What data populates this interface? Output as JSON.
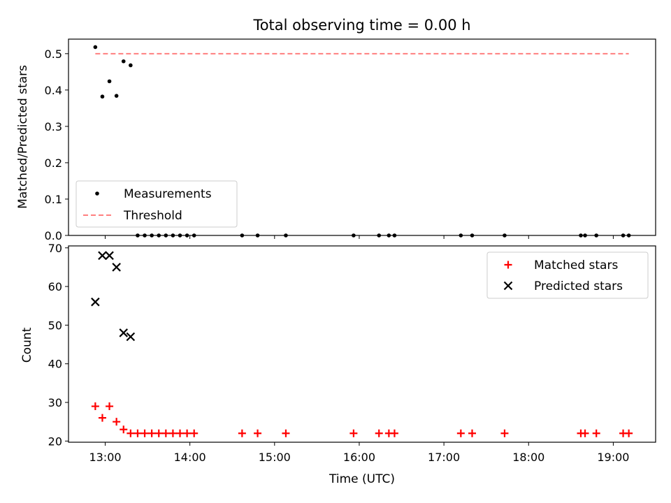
{
  "chart_data": [
    {
      "type": "scatter",
      "title": "Total observing time = 0.00 h",
      "xlabel": "",
      "ylabel": "Matched/Predicted stars",
      "xlim": [
        "12:34",
        "19:30"
      ],
      "ylim": [
        0,
        0.54
      ],
      "yticks": [
        0.0,
        0.1,
        0.2,
        0.3,
        0.4,
        0.5
      ],
      "ytick_labels": [
        "0.0",
        "0.1",
        "0.2",
        "0.3",
        "0.4",
        "0.5"
      ],
      "legend_position": "lower-left",
      "series": [
        {
          "name": "Measurements",
          "kind": "scatter",
          "marker": "dot",
          "color": "#000000",
          "points": [
            [
              "12:53",
              0.518
            ],
            [
              "12:58",
              0.382
            ],
            [
              "13:03",
              0.424
            ],
            [
              "13:08",
              0.384
            ],
            [
              "13:13",
              0.479
            ],
            [
              "13:18",
              0.468
            ],
            [
              "13:23",
              0.0
            ],
            [
              "13:28",
              0.0
            ],
            [
              "13:33",
              0.0
            ],
            [
              "13:38",
              0.0
            ],
            [
              "13:43",
              0.0
            ],
            [
              "13:48",
              0.0
            ],
            [
              "13:53",
              0.0
            ],
            [
              "13:58",
              0.0
            ],
            [
              "14:03",
              0.0
            ],
            [
              "14:37",
              0.0
            ],
            [
              "14:48",
              0.0
            ],
            [
              "15:08",
              0.0
            ],
            [
              "15:56",
              0.0
            ],
            [
              "16:14",
              0.0
            ],
            [
              "16:21",
              0.0
            ],
            [
              "16:25",
              0.0
            ],
            [
              "17:12",
              0.0
            ],
            [
              "17:20",
              0.0
            ],
            [
              "17:43",
              0.0
            ],
            [
              "18:37",
              0.0
            ],
            [
              "18:40",
              0.0
            ],
            [
              "18:48",
              0.0
            ],
            [
              "19:07",
              0.0
            ],
            [
              "19:11",
              0.0
            ]
          ]
        },
        {
          "name": "Threshold",
          "kind": "line",
          "style": "dashed",
          "color": "#ff7f7f",
          "points": [
            [
              "12:53",
              0.5
            ],
            [
              "19:11",
              0.5
            ]
          ]
        }
      ]
    },
    {
      "type": "scatter",
      "title": "",
      "xlabel": "Time (UTC)",
      "ylabel": "Count",
      "xlim": [
        "12:34",
        "19:30"
      ],
      "ylim": [
        19.7,
        70.5
      ],
      "yticks": [
        20,
        30,
        40,
        50,
        60,
        70
      ],
      "ytick_labels": [
        "20",
        "30",
        "40",
        "50",
        "60",
        "70"
      ],
      "xticks": [
        "13:00",
        "14:00",
        "15:00",
        "16:00",
        "17:00",
        "18:00",
        "19:00"
      ],
      "legend_position": "top-right",
      "series": [
        {
          "name": "Matched stars",
          "kind": "scatter",
          "marker": "plus",
          "color": "#ff0000",
          "points": [
            [
              "12:53",
              29
            ],
            [
              "12:58",
              26
            ],
            [
              "13:03",
              29
            ],
            [
              "13:08",
              25
            ],
            [
              "13:13",
              23
            ],
            [
              "13:18",
              22
            ],
            [
              "13:23",
              22
            ],
            [
              "13:28",
              22
            ],
            [
              "13:33",
              22
            ],
            [
              "13:38",
              22
            ],
            [
              "13:43",
              22
            ],
            [
              "13:48",
              22
            ],
            [
              "13:53",
              22
            ],
            [
              "13:58",
              22
            ],
            [
              "14:03",
              22
            ],
            [
              "14:37",
              22
            ],
            [
              "14:48",
              22
            ],
            [
              "15:08",
              22
            ],
            [
              "15:56",
              22
            ],
            [
              "16:14",
              22
            ],
            [
              "16:21",
              22
            ],
            [
              "16:25",
              22
            ],
            [
              "17:12",
              22
            ],
            [
              "17:20",
              22
            ],
            [
              "17:43",
              22
            ],
            [
              "18:37",
              22
            ],
            [
              "18:40",
              22
            ],
            [
              "18:48",
              22
            ],
            [
              "19:07",
              22
            ],
            [
              "19:11",
              22
            ]
          ]
        },
        {
          "name": "Predicted stars",
          "kind": "scatter",
          "marker": "x",
          "color": "#000000",
          "points": [
            [
              "12:53",
              56
            ],
            [
              "12:58",
              68
            ],
            [
              "13:03",
              68
            ],
            [
              "13:08",
              65
            ],
            [
              "13:13",
              48
            ],
            [
              "13:18",
              47
            ]
          ]
        }
      ]
    }
  ]
}
